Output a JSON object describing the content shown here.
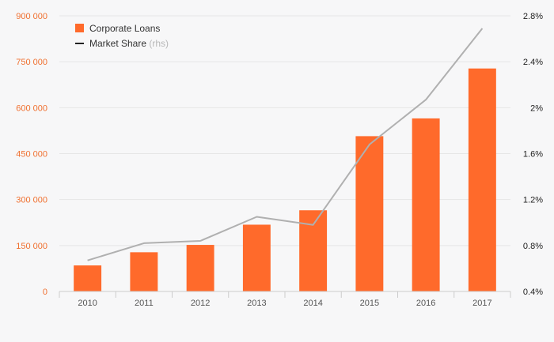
{
  "chart_data": {
    "type": "bar+line",
    "categories": [
      "2010",
      "2011",
      "2012",
      "2013",
      "2014",
      "2015",
      "2016",
      "2017"
    ],
    "series": [
      {
        "name": "Corporate Loans",
        "type": "bar",
        "axis": "left",
        "values": [
          85000,
          128000,
          152000,
          218000,
          265000,
          507000,
          565000,
          728000
        ]
      },
      {
        "name": "Market Share",
        "name_suffix": "(rhs)",
        "type": "line",
        "axis": "right",
        "values": [
          0.67,
          0.82,
          0.84,
          1.05,
          0.98,
          1.68,
          2.07,
          2.69
        ]
      }
    ],
    "y_left": {
      "min": 0,
      "max": 900000,
      "ticks": [
        0,
        150000,
        300000,
        450000,
        600000,
        750000,
        900000
      ],
      "tick_labels": [
        "0",
        "150 000",
        "300 000",
        "450 000",
        "600 000",
        "750 000",
        "900 000"
      ]
    },
    "y_right": {
      "min": 0.4,
      "max": 2.8,
      "ticks": [
        0.4,
        0.8,
        1.2,
        1.6,
        2.0,
        2.4,
        2.8
      ],
      "tick_labels": [
        "0.4%",
        "0.8%",
        "1.2%",
        "1.6%",
        "2%",
        "2.4%",
        "2.8%"
      ]
    },
    "grid": "horizontal",
    "legend_position": "top-left",
    "colors": {
      "bar": "#ff6a2b",
      "line": "#b0b0b0",
      "legend_line": "#222222",
      "left_ticks": "#f07030",
      "grid": "#e6e6e6"
    }
  }
}
